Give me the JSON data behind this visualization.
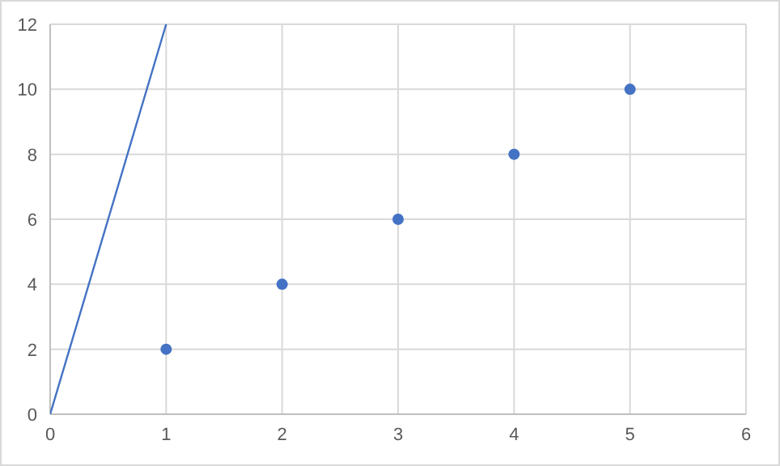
{
  "chart_data": {
    "type": "scatter",
    "xlim": [
      0,
      6
    ],
    "xticks": [
      0,
      1,
      2,
      3,
      4,
      5,
      6
    ],
    "ylim": [
      0,
      12
    ],
    "yticks": [
      0,
      2,
      4,
      6,
      8,
      10,
      12
    ],
    "grid": true,
    "series": [
      {
        "type": "line",
        "color": "#4472c4",
        "x": [
          0,
          1
        ],
        "values": [
          0,
          12
        ],
        "marker": "none"
      },
      {
        "color": "#4472c4",
        "x": [
          1,
          2,
          3,
          4,
          5
        ],
        "values": [
          2,
          4,
          6,
          8,
          10
        ],
        "marker": "circle"
      }
    ]
  }
}
